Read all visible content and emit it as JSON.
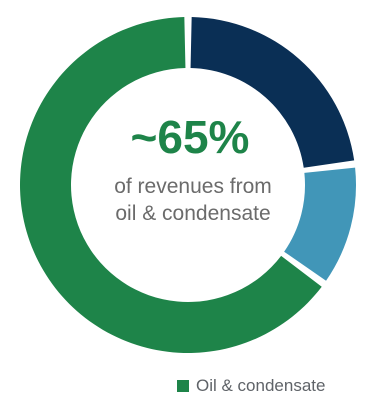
{
  "chart_data": {
    "type": "pie",
    "style": "donut",
    "headline": "~65%",
    "subtext_lines": [
      "of revenues from",
      "oil & condensate"
    ],
    "slices": [
      {
        "value": 65,
        "color": "#1e8449"
      },
      {
        "value": 23,
        "color": "#0a2f55"
      },
      {
        "value": 12,
        "color": "#4196b8"
      }
    ],
    "legend": {
      "position": "bottom-right",
      "entries": [
        {
          "label": "Oil & condensate",
          "color": "#1e8449"
        }
      ]
    },
    "text_colors": {
      "headline": "#1e8449",
      "subtext": "#6b6b6b"
    }
  }
}
